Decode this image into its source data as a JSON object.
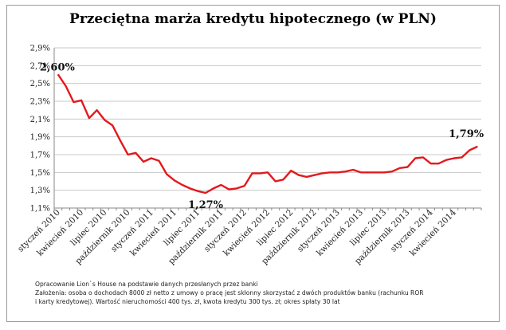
{
  "chart_data": {
    "type": "line",
    "title": "Przeciętna marża kredytu hipotecznego (w PLN)",
    "xlabel": "",
    "ylabel": "",
    "ylim": [
      1.1,
      2.9
    ],
    "y_ticks": [
      "1,1%",
      "1,3%",
      "1,5%",
      "1,7%",
      "1,9%",
      "2,1%",
      "2,3%",
      "2,5%",
      "2,7%",
      "2,9%"
    ],
    "grid": true,
    "x_tick_labels": [
      {
        "index": 0,
        "label": "styczeń 2010"
      },
      {
        "index": 3,
        "label": "kwiecień 2010"
      },
      {
        "index": 6,
        "label": "lipiec 2010"
      },
      {
        "index": 9,
        "label": "październik 2010"
      },
      {
        "index": 12,
        "label": "styczeń 2011"
      },
      {
        "index": 15,
        "label": "kwiecień 2011"
      },
      {
        "index": 18,
        "label": "lipiec 2011"
      },
      {
        "index": 21,
        "label": "październik 2011"
      },
      {
        "index": 24,
        "label": "styczeń 2012"
      },
      {
        "index": 27,
        "label": "kwiecień 2012"
      },
      {
        "index": 30,
        "label": "lipiec 2012"
      },
      {
        "index": 33,
        "label": "październik 2012"
      },
      {
        "index": 36,
        "label": "styczeń 2013"
      },
      {
        "index": 39,
        "label": "kwiecień 2013"
      },
      {
        "index": 42,
        "label": "lipiec 2013"
      },
      {
        "index": 45,
        "label": "październik 2013"
      },
      {
        "index": 48,
        "label": "styczeń 2014"
      },
      {
        "index": 51,
        "label": "kwiecień 2014"
      }
    ],
    "series": [
      {
        "values": [
          2.6,
          2.47,
          2.29,
          2.31,
          2.11,
          2.2,
          2.09,
          2.03,
          1.86,
          1.7,
          1.72,
          1.62,
          1.66,
          1.63,
          1.48,
          1.41,
          1.36,
          1.32,
          1.29,
          1.27,
          1.32,
          1.36,
          1.31,
          1.32,
          1.35,
          1.49,
          1.49,
          1.5,
          1.4,
          1.42,
          1.52,
          1.47,
          1.45,
          1.47,
          1.49,
          1.5,
          1.5,
          1.51,
          1.53,
          1.5,
          1.5,
          1.5,
          1.5,
          1.51,
          1.55,
          1.56,
          1.66,
          1.67,
          1.6,
          1.6,
          1.64,
          1.66,
          1.67,
          1.75,
          1.79
        ],
        "color": "#e3191d"
      }
    ],
    "annotations": [
      {
        "index": 0,
        "text": "2,60%"
      },
      {
        "index": 19,
        "text": "1,27%"
      },
      {
        "index": 54,
        "text": "1,79%"
      }
    ]
  },
  "footnote": {
    "line1": "Opracowanie Lion`s House na podstawie danych przesłanych przez banki",
    "line2": "Założenia: osoba o dochodach 8000 zł netto z umowy o pracę jest skłonny skorzystać z dwóch produktów banku (rachunku ROR",
    "line3": "i karty kredytowej). Wartość nieruchomości 400 tys. zł, kwota kredytu 300 tys. zł; okres spłaty 30 lat"
  }
}
